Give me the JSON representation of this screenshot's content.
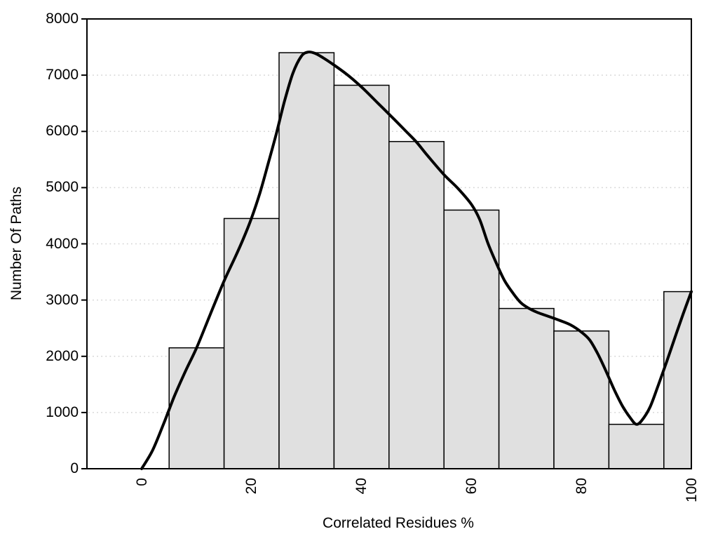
{
  "figure": {
    "background": "#ffffff",
    "text_color": "#000000"
  },
  "chart_data": {
    "type": "bar",
    "subtype": "histogram with smooth density curve overlay",
    "title": "",
    "xlabel": "Correlated Residues %",
    "ylabel": "Number Of Paths",
    "xlim": [
      0,
      100
    ],
    "ylim": [
      0,
      8000
    ],
    "xticks": [
      0,
      20,
      40,
      60,
      80,
      100
    ],
    "xtick_labels": [
      "0",
      "20",
      "40",
      "60",
      "80",
      "100"
    ],
    "xtick_label_rotation_deg": -90,
    "yticks": [
      0,
      1000,
      2000,
      3000,
      4000,
      5000,
      6000,
      7000,
      8000
    ],
    "ytick_labels": [
      "0",
      "1000",
      "2000",
      "3000",
      "4000",
      "5000",
      "6000",
      "7000",
      "8000"
    ],
    "grid": {
      "horizontal": true,
      "vertical": false,
      "style": "dotted",
      "color": "#d2d2d2",
      "at": [
        1000,
        2000,
        3000,
        4000,
        5000,
        6000,
        7000
      ]
    },
    "frame_box": true,
    "bars": {
      "bin_width": 10,
      "bin_edges": [
        5,
        15,
        25,
        35,
        45,
        55,
        65,
        75,
        85,
        95,
        105
      ],
      "counts": [
        2150,
        4450,
        7400,
        6820,
        5820,
        4600,
        2850,
        2450,
        790,
        3150
      ],
      "clip_right_at": 100,
      "fill": "#e0e0e0",
      "stroke": "#000000"
    },
    "curve": {
      "name": "density-curve",
      "color": "#000000",
      "stroke_width": 4,
      "points": [
        [
          0,
          0
        ],
        [
          2,
          330
        ],
        [
          4,
          800
        ],
        [
          6,
          1300
        ],
        [
          8,
          1740
        ],
        [
          10,
          2150
        ],
        [
          12.5,
          2750
        ],
        [
          15,
          3340
        ],
        [
          17,
          3760
        ],
        [
          18.5,
          4090
        ],
        [
          20,
          4460
        ],
        [
          21.5,
          4900
        ],
        [
          23,
          5420
        ],
        [
          24.5,
          5960
        ],
        [
          26,
          6540
        ],
        [
          27.5,
          7030
        ],
        [
          29,
          7330
        ],
        [
          30.2,
          7410
        ],
        [
          31.5,
          7390
        ],
        [
          33,
          7310
        ],
        [
          35,
          7180
        ],
        [
          37.5,
          7000
        ],
        [
          40,
          6790
        ],
        [
          43,
          6500
        ],
        [
          46,
          6210
        ],
        [
          48,
          6010
        ],
        [
          50,
          5810
        ],
        [
          52,
          5570
        ],
        [
          55,
          5230
        ],
        [
          57.5,
          4990
        ],
        [
          60,
          4700
        ],
        [
          61.5,
          4430
        ],
        [
          63,
          4010
        ],
        [
          64.5,
          3660
        ],
        [
          66,
          3350
        ],
        [
          67.5,
          3130
        ],
        [
          69,
          2950
        ],
        [
          70.5,
          2850
        ],
        [
          72,
          2780
        ],
        [
          74,
          2710
        ],
        [
          76,
          2640
        ],
        [
          78,
          2560
        ],
        [
          80,
          2430
        ],
        [
          81.5,
          2290
        ],
        [
          83,
          2040
        ],
        [
          84.5,
          1730
        ],
        [
          86,
          1400
        ],
        [
          87.5,
          1110
        ],
        [
          89,
          890
        ],
        [
          90,
          790
        ],
        [
          91,
          860
        ],
        [
          92.5,
          1100
        ],
        [
          94,
          1490
        ],
        [
          95.5,
          1900
        ],
        [
          97,
          2330
        ],
        [
          98.5,
          2750
        ],
        [
          100,
          3150
        ]
      ]
    }
  }
}
